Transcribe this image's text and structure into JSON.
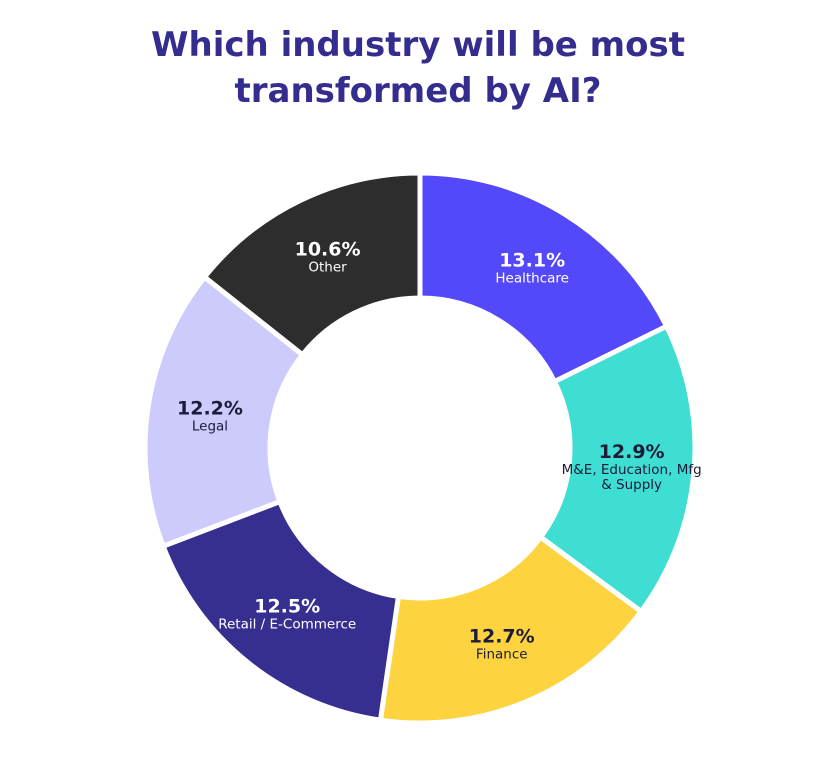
{
  "chart_data": {
    "type": "pie",
    "title": "Which industry will be most transformed by AI?",
    "categories": [
      "Healthcare",
      "M&E, Education, Mfg & Supply",
      "Finance",
      "Retail / E-Commerce",
      "Legal",
      "Other"
    ],
    "values": [
      13.1,
      12.9,
      12.7,
      12.5,
      12.2,
      10.6
    ],
    "value_labels": [
      "13.1%",
      "12.9%",
      "12.7%",
      "12.5%",
      "12.2%",
      "10.6%"
    ],
    "colors": [
      "#5448fb",
      "#3fded3",
      "#fed340",
      "#372f8f",
      "#cccbfb",
      "#2d2d2d"
    ]
  }
}
